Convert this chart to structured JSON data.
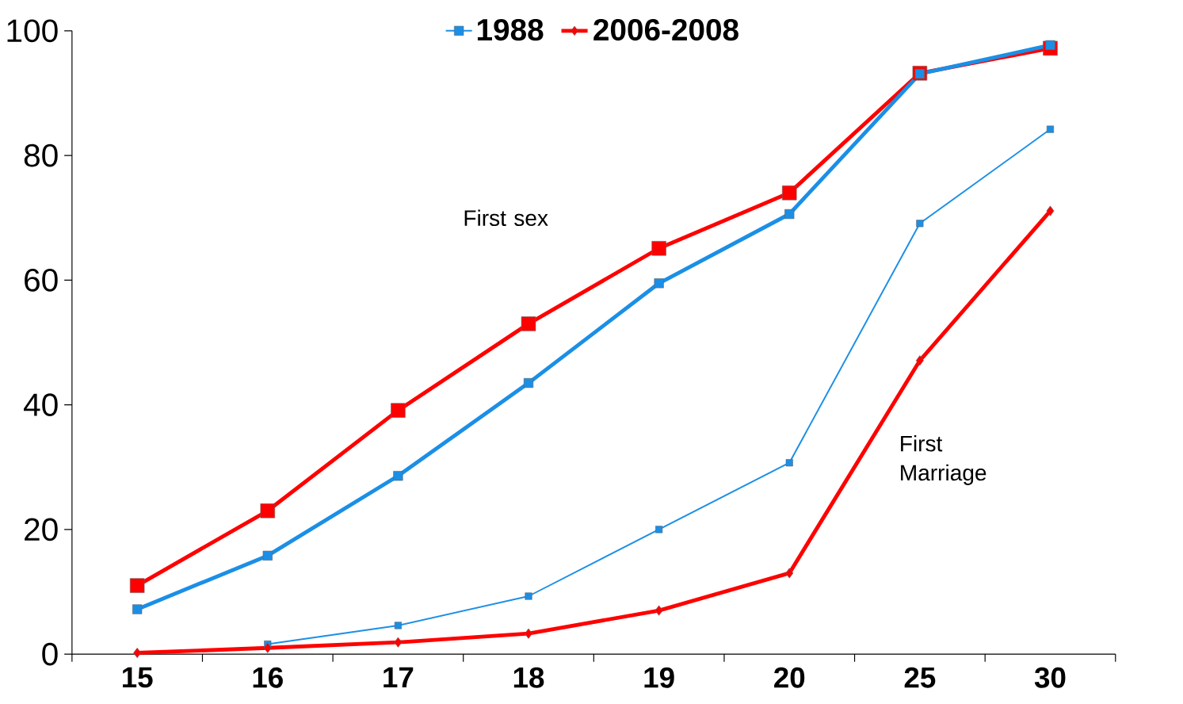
{
  "chart_data": {
    "type": "line",
    "categories": [
      "15",
      "16",
      "17",
      "18",
      "19",
      "20",
      "25",
      "30"
    ],
    "series": [
      {
        "color": "#1b8fe6",
        "marker": "square",
        "values": [
          7.2,
          15.8,
          28.6,
          43.5,
          59.5,
          70.6,
          93.1,
          97.7
        ]
      },
      {
        "color": "#ff0000",
        "marker": "square",
        "values": [
          11.0,
          23.0,
          39.1,
          53.0,
          65.1,
          74.0,
          93.2,
          97.2
        ]
      },
      {
        "name": "1988",
        "color": "#1b8fe6",
        "marker": "square",
        "values": [
          null,
          1.6,
          4.6,
          9.3,
          20.0,
          30.7,
          69.1,
          84.2
        ]
      },
      {
        "name": "2006-2008",
        "color": "#ff0000",
        "marker": "diamond",
        "values": [
          0.2,
          1.0,
          1.9,
          3.3,
          7.0,
          13.0,
          47.1,
          71.1
        ]
      }
    ],
    "ylim": [
      0,
      100
    ],
    "yticks": [
      0,
      20,
      40,
      60,
      80,
      100
    ],
    "annotations": [
      "First sex",
      "First Marriage"
    ],
    "legend": "top",
    "grid": false
  }
}
